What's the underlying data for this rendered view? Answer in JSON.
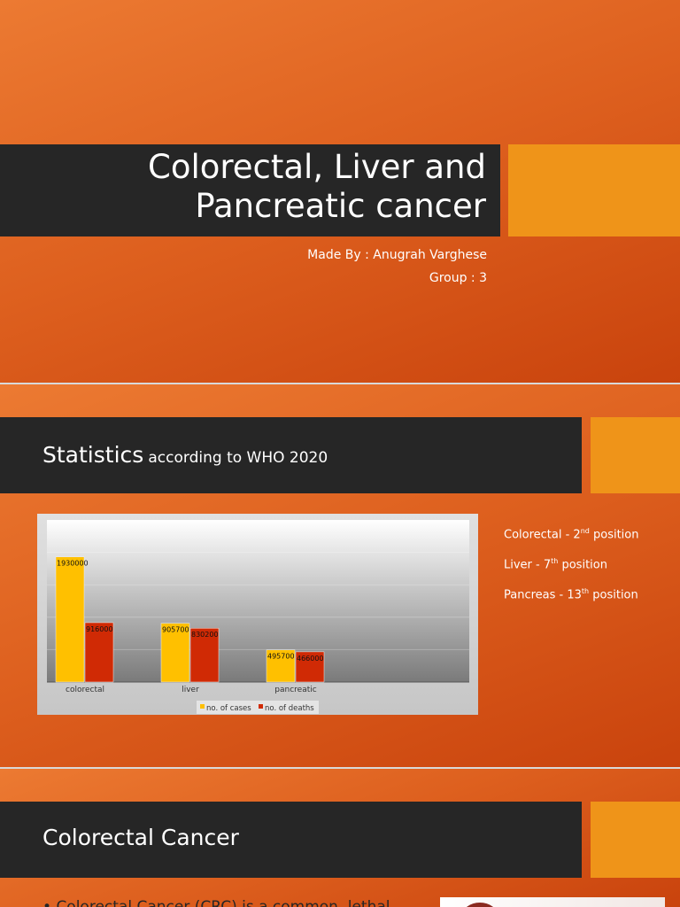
{
  "slide1": {
    "title_line1": "Colorectal, Liver and",
    "title_line2": "Pancreatic cancer",
    "author": "Made By : Anugrah Varghese",
    "group": "Group : 3"
  },
  "slide2": {
    "title": "Statistics",
    "title_suffix": "according to WHO 2020",
    "rankings": [
      {
        "label": "Colorectal - 2",
        "sup": "nd",
        "rest": " position"
      },
      {
        "label": "Liver - 7",
        "sup": "th",
        "rest": " position"
      },
      {
        "label": "Pancreas - 13",
        "sup": "th",
        "rest": " position"
      }
    ]
  },
  "slide3": {
    "title": "Colorectal Cancer",
    "bullet1": "Colorectal Cancer (CRC) is a common, lethal"
  },
  "colors": {
    "accent": "#ef9419",
    "bar_dark": "#262626",
    "cases": "#ffc000",
    "deaths": "#d02a05"
  },
  "chart_data": {
    "type": "bar",
    "categories": [
      "colorectal",
      "liver",
      "pancreatic"
    ],
    "series": [
      {
        "name": "no. of cases",
        "values": [
          1930000,
          905700,
          495700
        ]
      },
      {
        "name": "no. of deaths",
        "values": [
          916000,
          830200,
          466000
        ]
      }
    ],
    "ylim": [
      0,
      2500000
    ],
    "grid": true,
    "legend": "bottom",
    "data_labels": true
  }
}
